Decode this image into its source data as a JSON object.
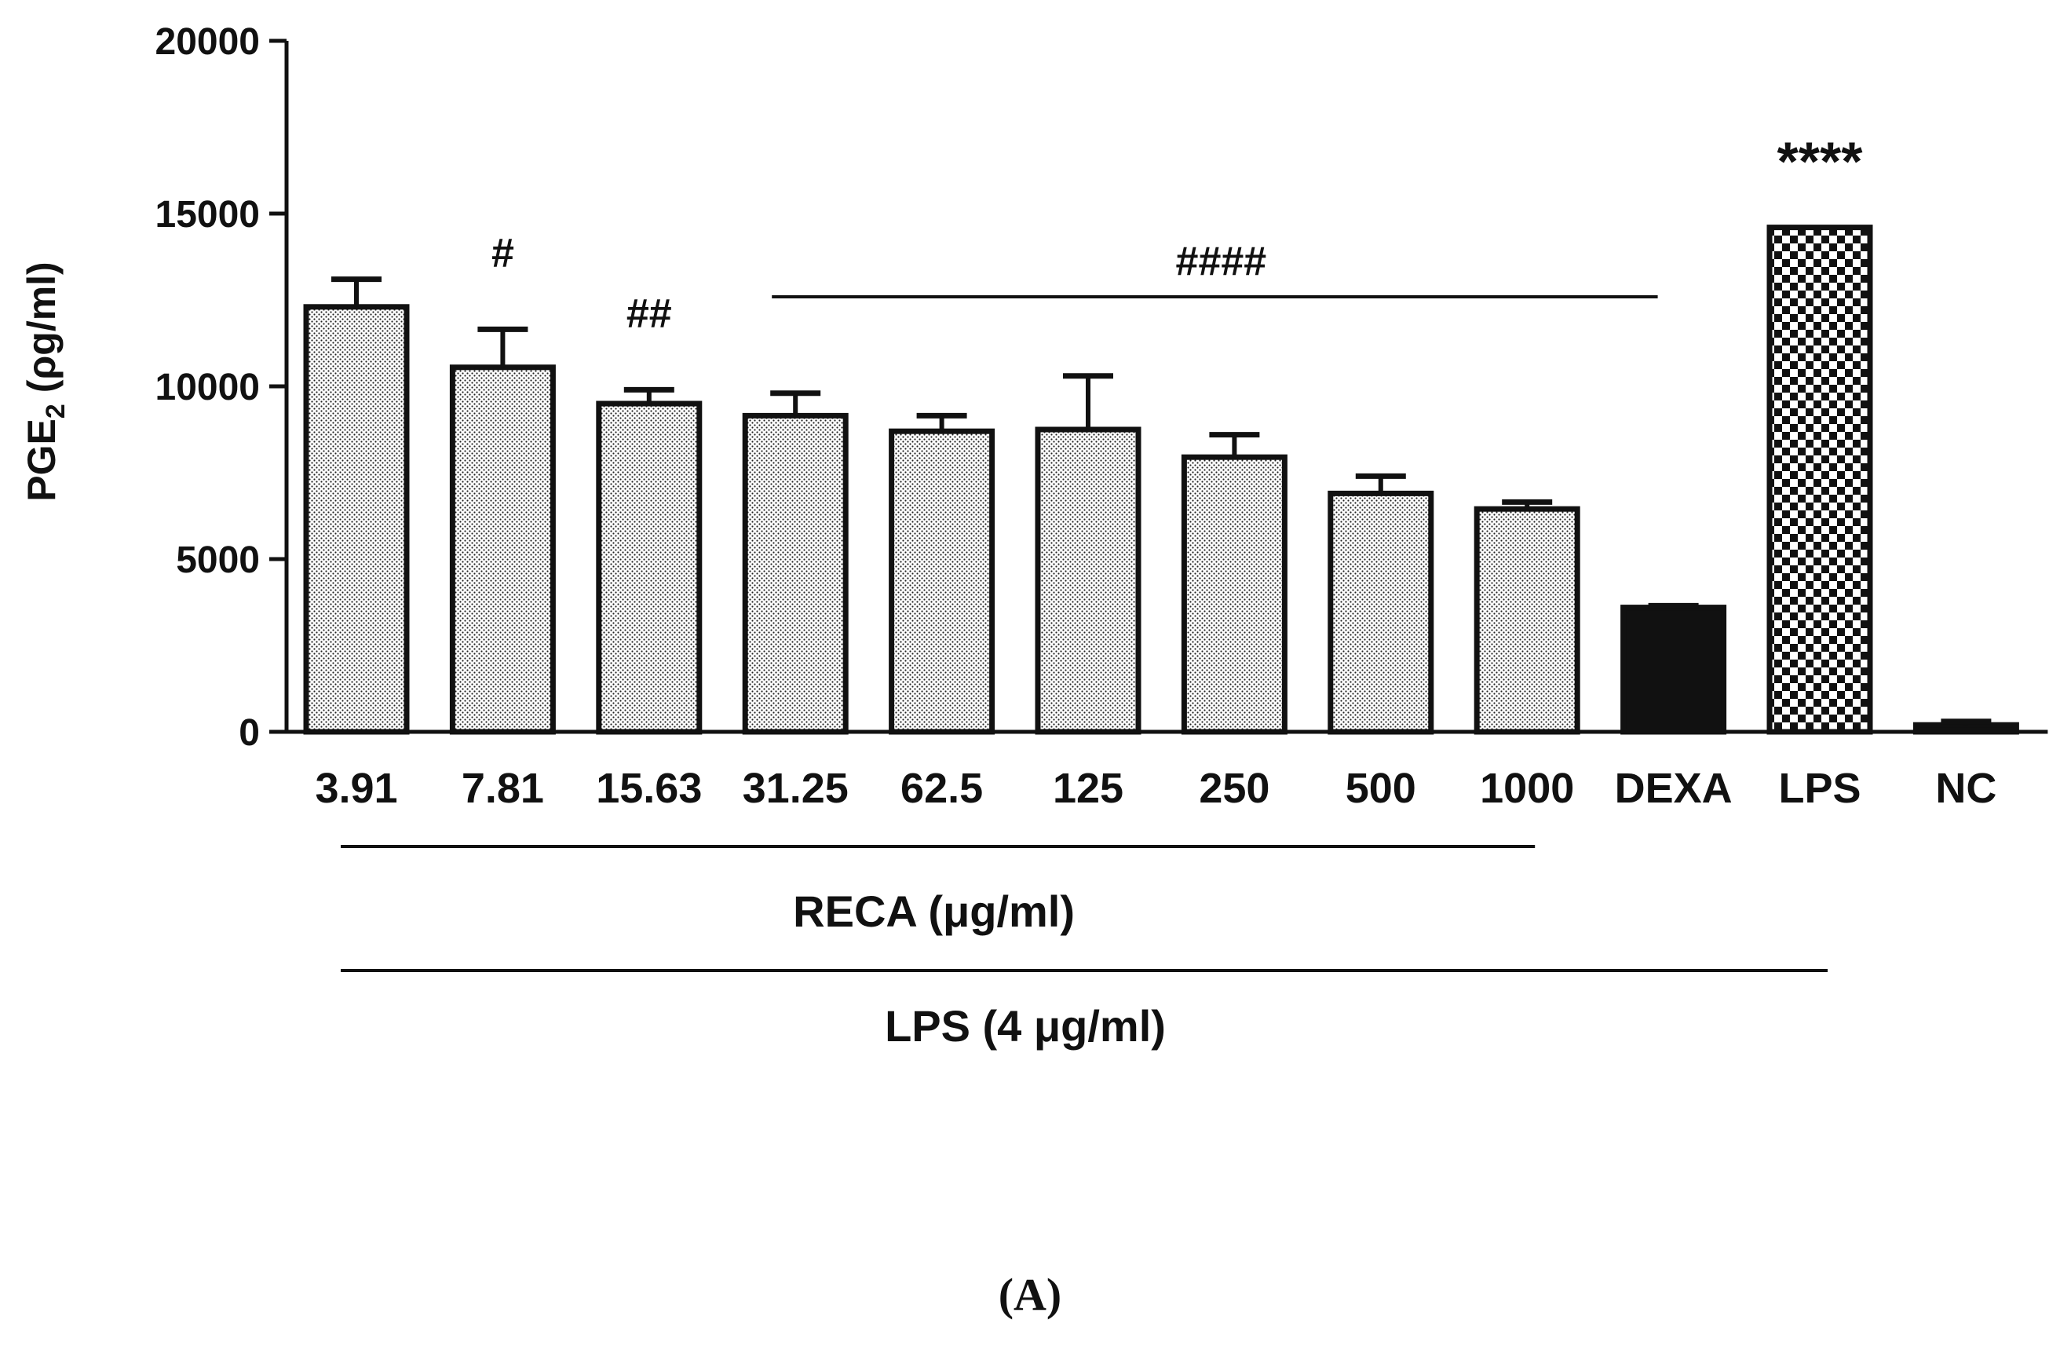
{
  "chart_data": {
    "type": "bar",
    "ylabel_main": "PGE",
    "ylabel_sub": "2",
    "ylabel_unit": " (ρg/ml)",
    "ylim": [
      0,
      20000
    ],
    "yticks": [
      "0",
      "5000",
      "10000",
      "15000",
      "20000"
    ],
    "ytick_values": [
      0,
      5000,
      10000,
      15000,
      20000
    ],
    "grid": false,
    "categories": [
      "3.91",
      "7.81",
      "15.63",
      "31.25",
      "62.5",
      "125",
      "250",
      "500",
      "1000",
      "DEXA",
      "LPS",
      "NC"
    ],
    "values": [
      12300,
      10550,
      9500,
      9150,
      8700,
      8750,
      7950,
      6900,
      6450,
      3600,
      14600,
      200
    ],
    "errors": [
      800,
      1100,
      400,
      650,
      450,
      1550,
      650,
      500,
      200,
      50,
      0,
      100
    ],
    "fills": [
      "dots",
      "dots",
      "dots",
      "dots",
      "dots",
      "dots",
      "dots",
      "dots",
      "dots",
      "solid",
      "checker",
      "solid"
    ],
    "annotations": [
      {
        "text": "#",
        "index": 1
      },
      {
        "text": "##",
        "index": 2
      },
      {
        "text": "####",
        "span": [
          3,
          9
        ]
      },
      {
        "text": "****",
        "index": 10
      }
    ],
    "group_labels": [
      {
        "text": "RECA (μg/ml)",
        "span": [
          0,
          8
        ]
      },
      {
        "text": "LPS  (4 μg/ml)",
        "span": [
          0,
          10
        ]
      }
    ],
    "panel_label": "(A)"
  },
  "colors": {
    "ink": "#111111",
    "background": "#ffffff"
  }
}
